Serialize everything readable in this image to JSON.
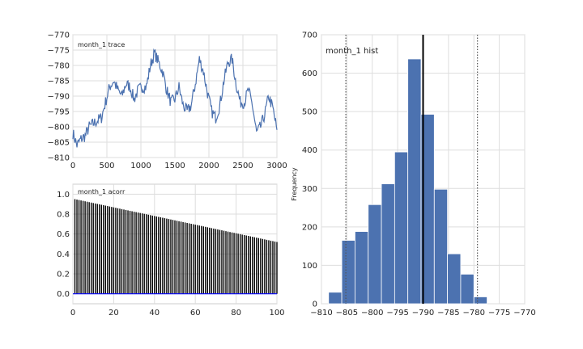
{
  "chart_data": [
    {
      "type": "line",
      "panel": "trace",
      "title": "month_1 trace",
      "xlim": [
        0,
        3000
      ],
      "ylim": [
        -810,
        -770
      ],
      "xticks": [
        0,
        500,
        1000,
        1500,
        2000,
        2500,
        3000
      ],
      "yticks": [
        -810,
        -805,
        -800,
        -795,
        -790,
        -785,
        -780,
        -775,
        -770
      ],
      "xlabel": "",
      "ylabel": "",
      "grid": true,
      "color": "#4c72b0",
      "series": [
        {
          "x": [
            0,
            60,
            120,
            180,
            240,
            300,
            360,
            420,
            480,
            540,
            600,
            660,
            720,
            780,
            840,
            900,
            960,
            1020,
            1080,
            1140,
            1200,
            1260,
            1320,
            1380,
            1440,
            1500,
            1560,
            1620,
            1680,
            1740,
            1800,
            1860,
            1920,
            1980,
            2040,
            2100,
            2160,
            2220,
            2280,
            2340,
            2400,
            2460,
            2520,
            2580,
            2640,
            2700,
            2760,
            2820,
            2880,
            2940,
            3000
          ],
          "y": [
            -802,
            -806,
            -804,
            -803,
            -800,
            -799,
            -798,
            -797,
            -792,
            -787,
            -785,
            -788,
            -790,
            -786,
            -787,
            -791,
            -788,
            -787,
            -787,
            -780,
            -776,
            -779,
            -782,
            -788,
            -792,
            -791,
            -787,
            -793,
            -795,
            -793,
            -786,
            -778,
            -782,
            -789,
            -795,
            -797,
            -793,
            -785,
            -779,
            -778,
            -786,
            -792,
            -792,
            -788,
            -793,
            -802,
            -800,
            -796,
            -790,
            -794,
            -801
          ]
        }
      ]
    },
    {
      "type": "bar",
      "panel": "acorr",
      "title": "month_1 acorr",
      "xlim": [
        0,
        100
      ],
      "ylim": [
        -0.1,
        1.1
      ],
      "xticks": [
        0,
        20,
        40,
        60,
        80,
        100
      ],
      "yticks": [
        0.0,
        0.2,
        0.4,
        0.6,
        0.8,
        1.0
      ],
      "xlabel": "",
      "ylabel": "",
      "grid": true,
      "lags": {
        "start": 1,
        "end": 100,
        "first_value": 0.95,
        "last_value": 0.52
      },
      "baseline_color": "#0000ff",
      "bar_color": "#000000"
    },
    {
      "type": "bar",
      "panel": "hist",
      "title": "month_1 hist",
      "xlim": [
        -810,
        -770
      ],
      "ylim": [
        0,
        700
      ],
      "xticks": [
        -810,
        -805,
        -800,
        -795,
        -790,
        -785,
        -780,
        -775,
        -770
      ],
      "yticks": [
        0,
        100,
        200,
        300,
        400,
        500,
        600,
        700
      ],
      "xlabel": "",
      "ylabel": "Frequency",
      "grid": true,
      "bin_edges": [
        -808.6,
        -806.0,
        -803.4,
        -800.8,
        -798.2,
        -795.6,
        -793.0,
        -790.4,
        -787.8,
        -785.2,
        -782.6,
        -780.0,
        -777.4,
        -774.8,
        -772.2
      ],
      "counts": [
        30,
        165,
        188,
        258,
        312,
        395,
        637,
        493,
        298,
        130,
        77,
        18,
        0,
        0
      ],
      "mean_line": -790.0,
      "interval_lines": [
        -805.2,
        -779.3
      ],
      "color": "#4c72b0"
    }
  ]
}
